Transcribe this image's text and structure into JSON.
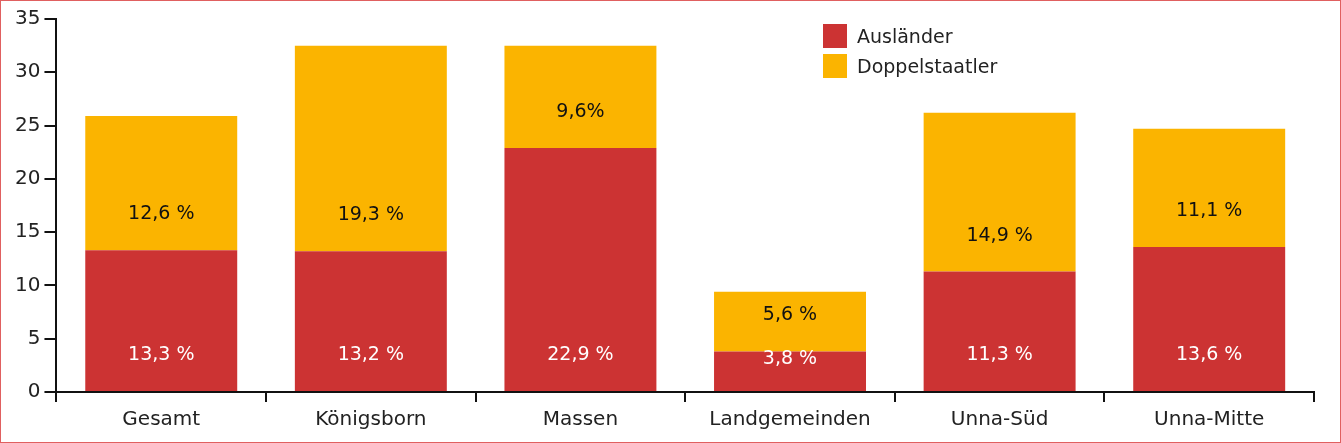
{
  "chart_data": {
    "type": "bar",
    "stacked": true,
    "categories": [
      "Gesamt",
      "Königsborn",
      "Massen",
      "Landgemeinden",
      "Unna-Süd",
      "Unna-Mitte"
    ],
    "series": [
      {
        "name": "Ausländer",
        "color": "#cc3333",
        "values": [
          13.3,
          13.2,
          22.9,
          3.8,
          11.3,
          13.6
        ],
        "value_labels": [
          "13,3 %",
          "13,2 %",
          "22,9 %",
          "3,8 %",
          "11,3 %",
          "13,6 %"
        ]
      },
      {
        "name": "Doppelstaatler",
        "color": "#fbb400",
        "values": [
          12.6,
          19.3,
          9.6,
          5.6,
          14.9,
          11.1
        ],
        "value_labels": [
          "12,6 %",
          "19,3 %",
          "9,6%",
          "5,6 %",
          "14,9 %",
          "11,1 %"
        ]
      }
    ],
    "ylim": [
      0,
      35
    ],
    "yticks": [
      0,
      5,
      10,
      15,
      20,
      25,
      30,
      35
    ],
    "legend": "top right"
  }
}
